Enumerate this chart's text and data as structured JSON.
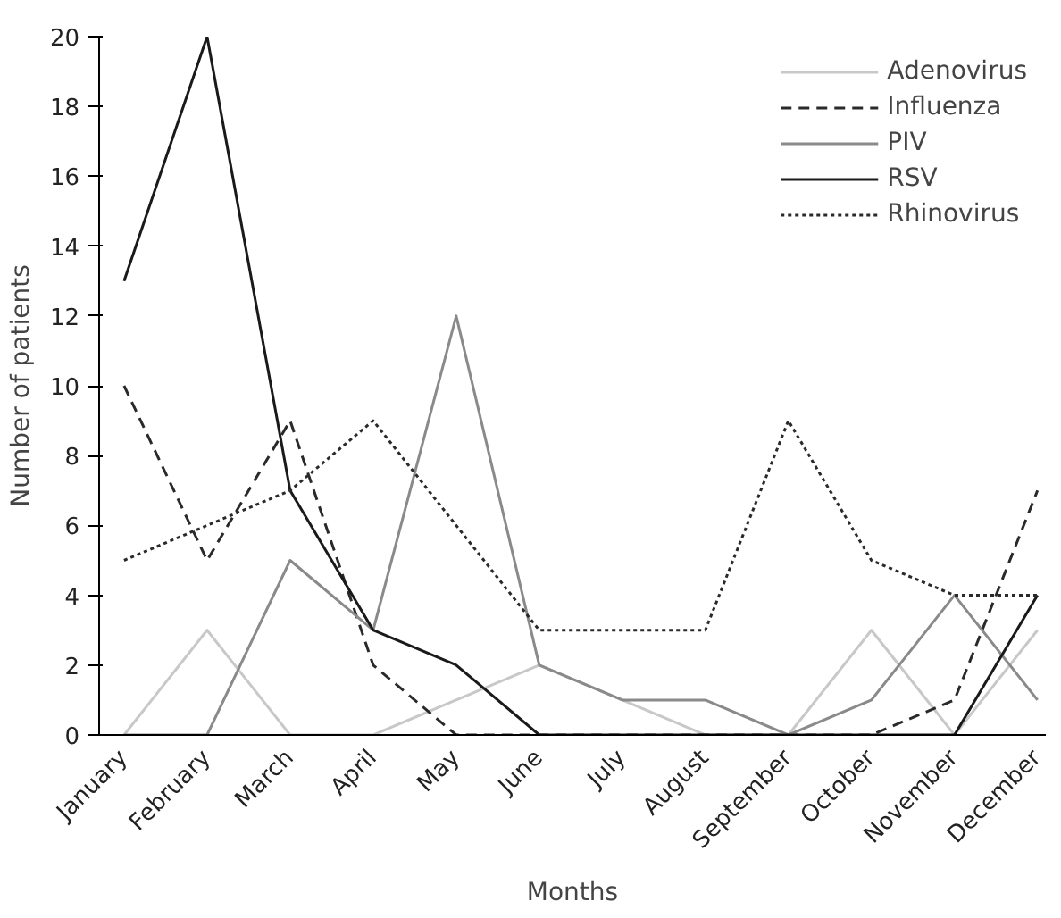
{
  "chart_data": {
    "type": "line",
    "xlabel": "Months",
    "ylabel": "Number of patients",
    "categories": [
      "January",
      "February",
      "March",
      "April",
      "May",
      "June",
      "July",
      "August",
      "September",
      "October",
      "November",
      "December"
    ],
    "ylim": [
      0,
      20
    ],
    "yticks": [
      0,
      2,
      4,
      6,
      8,
      10,
      12,
      14,
      16,
      18,
      20
    ],
    "grid": false,
    "legend": "top right",
    "marker": "none",
    "series": [
      {
        "name": "Adenovirus",
        "color": "#c8c8c8",
        "line_style": "solid",
        "values": [
          0,
          3,
          0,
          0,
          1,
          2,
          1,
          0,
          0,
          3,
          0,
          3
        ]
      },
      {
        "name": "Influenza",
        "color": "#2a2a2a",
        "line_style": "dashed",
        "values": [
          10,
          5,
          9,
          2,
          0,
          0,
          0,
          0,
          0,
          0,
          1,
          7
        ]
      },
      {
        "name": "PIV",
        "color": "#8a8a8a",
        "line_style": "solid",
        "values": [
          0,
          0,
          5,
          3,
          12,
          2,
          1,
          1,
          0,
          1,
          4,
          1
        ]
      },
      {
        "name": "RSV",
        "color": "#1a1a1a",
        "line_style": "solid",
        "values": [
          13,
          20,
          7,
          3,
          2,
          0,
          0,
          0,
          0,
          0,
          0,
          4
        ]
      },
      {
        "name": "Rhinovirus",
        "color": "#2a2a2a",
        "line_style": "dotted",
        "values": [
          5,
          6,
          7,
          9,
          6,
          3,
          3,
          3,
          9,
          5,
          4,
          4
        ]
      }
    ]
  }
}
